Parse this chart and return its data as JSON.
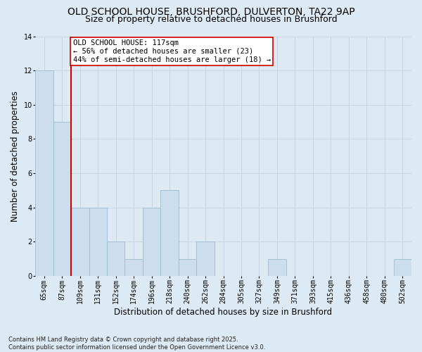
{
  "title": "OLD SCHOOL HOUSE, BRUSHFORD, DULVERTON, TA22 9AP",
  "subtitle": "Size of property relative to detached houses in Brushford",
  "xlabel": "Distribution of detached houses by size in Brushford",
  "ylabel": "Number of detached properties",
  "categories": [
    "65sqm",
    "87sqm",
    "109sqm",
    "131sqm",
    "152sqm",
    "174sqm",
    "196sqm",
    "218sqm",
    "240sqm",
    "262sqm",
    "284sqm",
    "305sqm",
    "327sqm",
    "349sqm",
    "371sqm",
    "393sqm",
    "415sqm",
    "436sqm",
    "458sqm",
    "480sqm",
    "502sqm"
  ],
  "values": [
    12,
    9,
    4,
    4,
    2,
    1,
    4,
    5,
    1,
    2,
    0,
    0,
    0,
    1,
    0,
    0,
    0,
    0,
    0,
    0,
    1
  ],
  "bar_color": "#ccdded",
  "bar_edgecolor": "#9bbcce",
  "vline_color": "#cc0000",
  "annotation_text": "OLD SCHOOL HOUSE: 117sqm\n← 56% of detached houses are smaller (23)\n44% of semi-detached houses are larger (18) →",
  "annotation_box_color": "#ffffff",
  "annotation_box_edgecolor": "#cc0000",
  "ylim": [
    0,
    14
  ],
  "yticks": [
    0,
    2,
    4,
    6,
    8,
    10,
    12,
    14
  ],
  "grid_color": "#c8d4e0",
  "background_color": "#dde9f3",
  "footer_text": "Contains HM Land Registry data © Crown copyright and database right 2025.\nContains public sector information licensed under the Open Government Licence v3.0.",
  "title_fontsize": 10,
  "subtitle_fontsize": 9,
  "axis_label_fontsize": 8.5,
  "tick_fontsize": 7,
  "annotation_fontsize": 7.5,
  "footer_fontsize": 6
}
